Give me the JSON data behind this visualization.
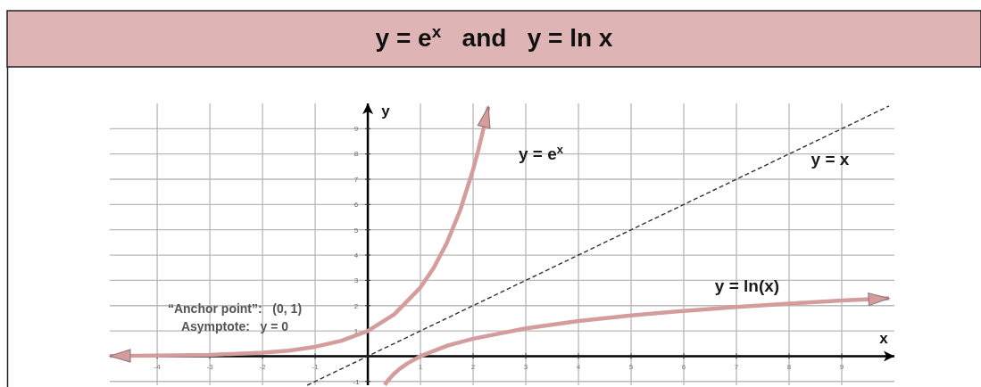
{
  "chart_data": {
    "type": "line",
    "title": "y = e$^{x}$   and   y = ln x",
    "xlabel": "x",
    "ylabel": "y",
    "series": [
      {
        "name": "y = e$^{x}$",
        "color": "#d49c9c",
        "line_style": "solid",
        "x": [
          -4.9,
          -4,
          -3,
          -2,
          -1.5,
          -1,
          -0.5,
          0,
          0.5,
          1,
          1.25,
          1.5,
          1.75,
          2,
          2.1,
          2.2,
          2.29
        ],
        "values": [
          0.01,
          0.02,
          0.05,
          0.14,
          0.22,
          0.37,
          0.61,
          1,
          1.65,
          2.72,
          3.49,
          4.48,
          5.75,
          7.39,
          8.17,
          9.03,
          9.87
        ]
      },
      {
        "name": "y = ln(x)",
        "color": "#d49c9c",
        "line_style": "solid",
        "x": [
          0.32,
          0.4,
          0.5,
          0.6,
          0.75,
          1,
          1.5,
          2,
          3,
          4,
          5,
          6,
          7,
          8,
          9,
          9.9
        ],
        "values": [
          -1.14,
          -0.92,
          -0.69,
          -0.51,
          -0.29,
          0,
          0.41,
          0.69,
          1.1,
          1.39,
          1.61,
          1.79,
          1.95,
          2.08,
          2.2,
          2.29
        ]
      },
      {
        "name": "y = x",
        "color": "#333333",
        "line_style": "dashed",
        "x": [
          -1.15,
          9.9
        ],
        "values": [
          -1.15,
          9.9
        ]
      }
    ],
    "xlim": [
      -4.9,
      10
    ],
    "ylim": [
      -1.15,
      10
    ],
    "xticks": [
      -4,
      -3,
      -2,
      -1,
      1,
      2,
      3,
      4,
      5,
      6,
      7,
      8,
      9
    ],
    "yticks": [
      -1,
      1,
      2,
      3,
      4,
      5,
      6,
      7,
      8,
      9
    ],
    "grid": true,
    "annotations": [
      "“Anchor point”:   (0, 1)",
      "Asymptote:   y = 0"
    ]
  }
}
